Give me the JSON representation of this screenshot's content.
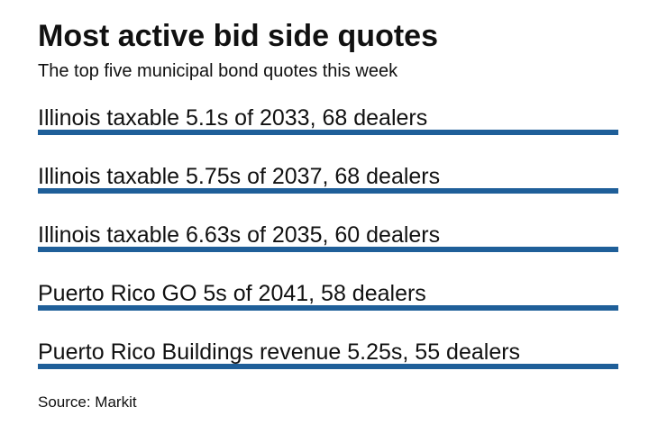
{
  "chart_data": {
    "type": "bar",
    "title": "Most active bid side quotes",
    "subtitle": "The top five municipal bond quotes this week",
    "source": "Source: Markit",
    "colors": {
      "bar": "#1f5f99"
    },
    "categories": [
      "Illinois taxable 5.1s of 2033, 68 dealers",
      "Illinois taxable 5.75s of 2037, 68 dealers",
      "Illinois taxable 6.63s of 2035, 60 dealers",
      "Puerto Rico GO 5s of 2041, 58 dealers",
      "Puerto Rico Buildings revenue 5.25s, 55 dealers"
    ],
    "values": [
      68,
      68,
      60,
      58,
      55
    ],
    "xlim": [
      0,
      68
    ]
  }
}
